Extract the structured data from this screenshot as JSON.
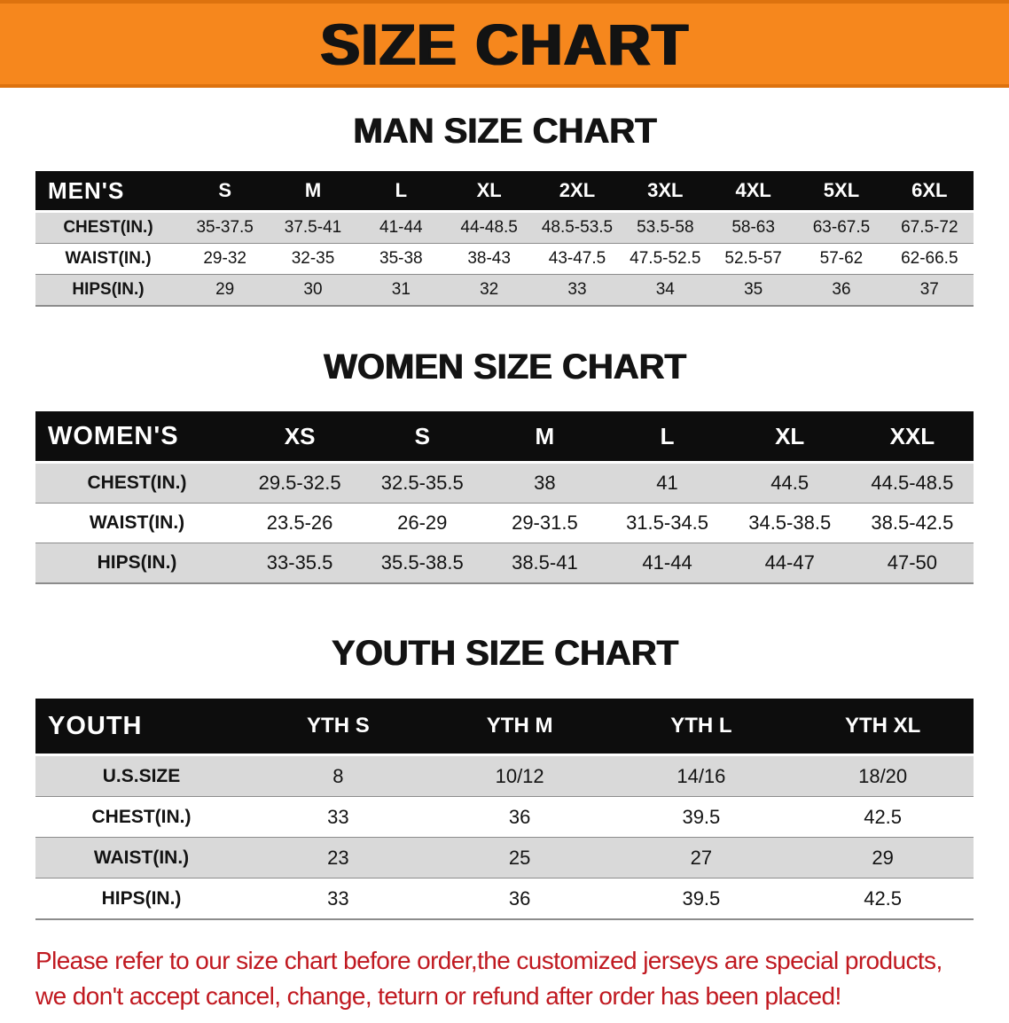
{
  "banner": {
    "title": "SIZE CHART"
  },
  "theme": {
    "banner_bg": "#F6871D",
    "banner_border": "#DD720E",
    "table_header_bg": "#0D0D0D",
    "table_header_text": "#FFFFFF",
    "row_alt_bg": "#D9D9D9",
    "footnote_color": "#C01920"
  },
  "tables": [
    {
      "heading": "MAN SIZE CHART",
      "corner_label": "MEN'S",
      "columns": [
        "S",
        "M",
        "L",
        "XL",
        "2XL",
        "3XL",
        "4XL",
        "5XL",
        "6XL"
      ],
      "rows": [
        {
          "label": "CHEST(IN.)",
          "values": [
            "35-37.5",
            "37.5-41",
            "41-44",
            "44-48.5",
            "48.5-53.5",
            "53.5-58",
            "58-63",
            "63-67.5",
            "67.5-72"
          ]
        },
        {
          "label": "WAIST(IN.)",
          "values": [
            "29-32",
            "32-35",
            "35-38",
            "38-43",
            "43-47.5",
            "47.5-52.5",
            "52.5-57",
            "57-62",
            "62-66.5"
          ]
        },
        {
          "label": "HIPS(IN.)",
          "values": [
            "29",
            "30",
            "31",
            "32",
            "33",
            "34",
            "35",
            "36",
            "37"
          ]
        }
      ]
    },
    {
      "heading": "WOMEN SIZE CHART",
      "corner_label": "WOMEN'S",
      "columns": [
        "XS",
        "S",
        "M",
        "L",
        "XL",
        "XXL"
      ],
      "rows": [
        {
          "label": "CHEST(IN.)",
          "values": [
            "29.5-32.5",
            "32.5-35.5",
            "38",
            "41",
            "44.5",
            "44.5-48.5"
          ]
        },
        {
          "label": "WAIST(IN.)",
          "values": [
            "23.5-26",
            "26-29",
            "29-31.5",
            "31.5-34.5",
            "34.5-38.5",
            "38.5-42.5"
          ]
        },
        {
          "label": "HIPS(IN.)",
          "values": [
            "33-35.5",
            "35.5-38.5",
            "38.5-41",
            "41-44",
            "44-47",
            "47-50"
          ]
        }
      ]
    },
    {
      "heading": "YOUTH SIZE CHART",
      "corner_label": "YOUTH",
      "columns": [
        "YTH S",
        "YTH M",
        "YTH L",
        "YTH XL"
      ],
      "rows": [
        {
          "label": "U.S.SIZE",
          "values": [
            "8",
            "10/12",
            "14/16",
            "18/20"
          ]
        },
        {
          "label": "CHEST(IN.)",
          "values": [
            "33",
            "36",
            "39.5",
            "42.5"
          ]
        },
        {
          "label": "WAIST(IN.)",
          "values": [
            "23",
            "25",
            "27",
            "29"
          ]
        },
        {
          "label": "HIPS(IN.)",
          "values": [
            "33",
            "36",
            "39.5",
            "42.5"
          ]
        }
      ]
    }
  ],
  "footnote": {
    "lines": [
      "Please refer to our size chart before order,the customized jerseys are special products,",
      "we don't accept cancel, change, teturn or refund after order has been placed!"
    ]
  }
}
